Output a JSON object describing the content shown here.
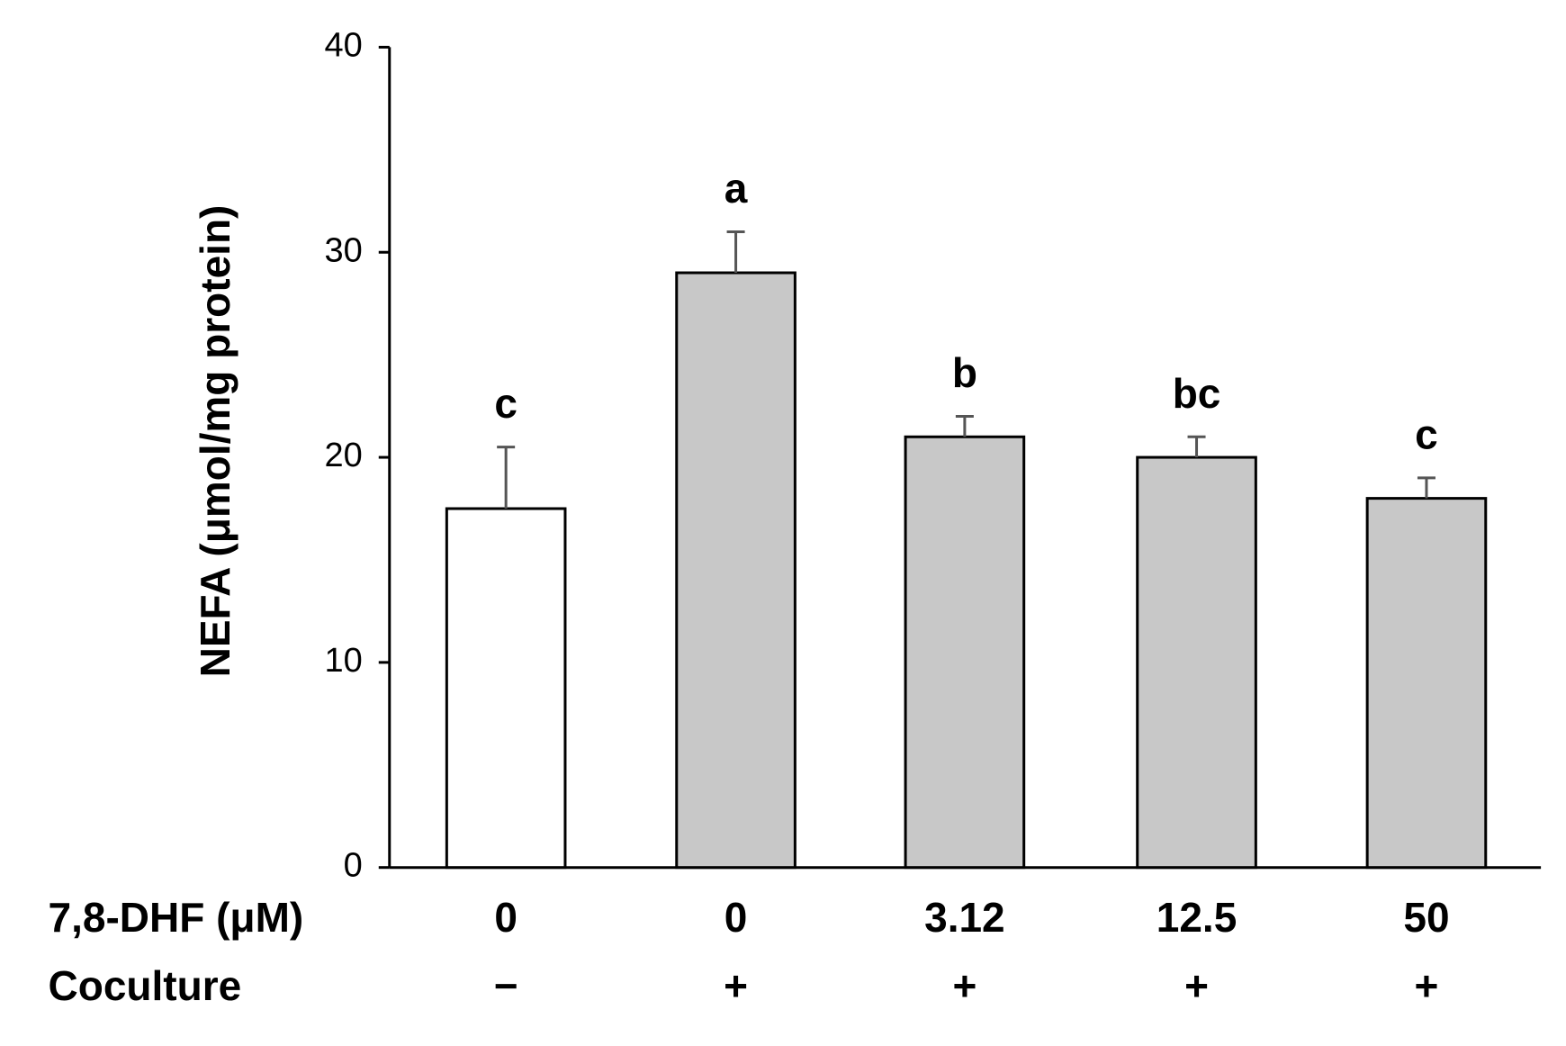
{
  "chart_data": {
    "type": "bar",
    "y_label": "NEFA (μmol/mg protein)",
    "row_labels": [
      "7,8-DHF (μM)",
      "Coculture"
    ],
    "categories": [
      "0",
      "0",
      "3.12",
      "12.5",
      "50"
    ],
    "coculture": [
      "−",
      "+",
      "+",
      "+",
      "+"
    ],
    "values": [
      17.5,
      29.0,
      21.0,
      20.0,
      18.0
    ],
    "errors": [
      3.0,
      2.0,
      1.0,
      1.0,
      1.0
    ],
    "annotations": [
      "c",
      "a",
      "b",
      "bc",
      "c"
    ],
    "colors": [
      "#ffffff",
      "#c8c8c8",
      "#c8c8c8",
      "#c8c8c8",
      "#c8c8c8"
    ],
    "ylim": [
      0,
      40
    ],
    "yticks": [
      0,
      10,
      20,
      30,
      40
    ],
    "grid": false
  }
}
